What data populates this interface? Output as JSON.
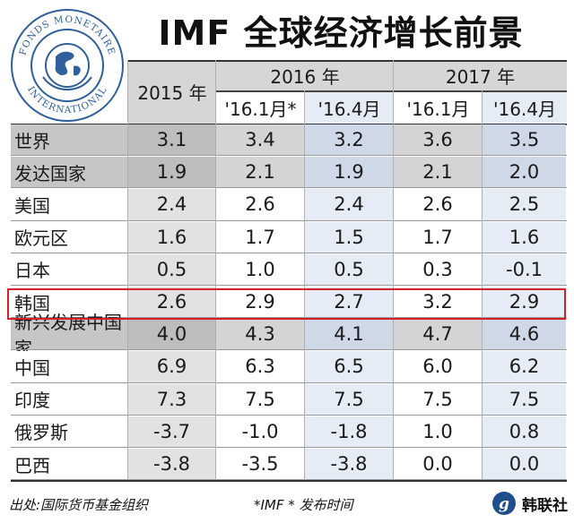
{
  "title": "IMF 全球经济增长前景",
  "logo": {
    "text_top": "FONDS MONETAIRE",
    "text_bottom": "INTERNATIONAL"
  },
  "chart_data": {
    "type": "table",
    "title": "IMF 全球经济增长前景",
    "header_groups": [
      {
        "label": "2015 年",
        "span": 1
      },
      {
        "label": "2016 年",
        "span": 2
      },
      {
        "label": "2017 年",
        "span": 2
      }
    ],
    "columns": [
      "'16.1月*",
      "'16.4月",
      "'16.1月",
      "'16.4月"
    ],
    "rows": [
      {
        "name": "世界",
        "values": [
          "3.1",
          "3.4",
          "3.2",
          "3.6",
          "3.5"
        ],
        "shade": "dark"
      },
      {
        "name": "发达国家",
        "values": [
          "1.9",
          "2.1",
          "1.9",
          "2.1",
          "2.0"
        ],
        "shade": "dark"
      },
      {
        "name": "美国",
        "values": [
          "2.4",
          "2.6",
          "2.4",
          "2.6",
          "2.5"
        ],
        "shade": "light"
      },
      {
        "name": "欧元区",
        "values": [
          "1.6",
          "1.7",
          "1.5",
          "1.7",
          "1.6"
        ],
        "shade": "light"
      },
      {
        "name": "日本",
        "values": [
          "0.5",
          "1.0",
          "0.5",
          "0.3",
          "-0.1"
        ],
        "shade": "light"
      },
      {
        "name": "韩国",
        "values": [
          "2.6",
          "2.9",
          "2.7",
          "3.2",
          "2.9"
        ],
        "shade": "light",
        "highlight": true
      },
      {
        "name": "新兴发展中国家",
        "values": [
          "4.0",
          "4.3",
          "4.1",
          "4.7",
          "4.6"
        ],
        "shade": "dark"
      },
      {
        "name": "中国",
        "values": [
          "6.9",
          "6.3",
          "6.5",
          "6.0",
          "6.2"
        ],
        "shade": "light"
      },
      {
        "name": "印度",
        "values": [
          "7.3",
          "7.5",
          "7.5",
          "7.5",
          "7.5"
        ],
        "shade": "light"
      },
      {
        "name": "俄罗斯",
        "values": [
          "-3.7",
          "-1.0",
          "-1.8",
          "1.0",
          "0.8"
        ],
        "shade": "light"
      },
      {
        "name": "巴西",
        "values": [
          "-3.8",
          "-3.5",
          "-3.8",
          "0.0",
          "0.0"
        ],
        "shade": "light"
      }
    ]
  },
  "footer": {
    "source": "出处:国际货币基金组织",
    "note": "*IMF * 发布时间",
    "brand": "韩联社"
  },
  "colors": {
    "highlight": "#d42027",
    "header": "#d6d6d6",
    "label_dark": "#c6c6c6",
    "blue_dark": "#cfd8e6",
    "blue_light": "#e6ecf5"
  }
}
